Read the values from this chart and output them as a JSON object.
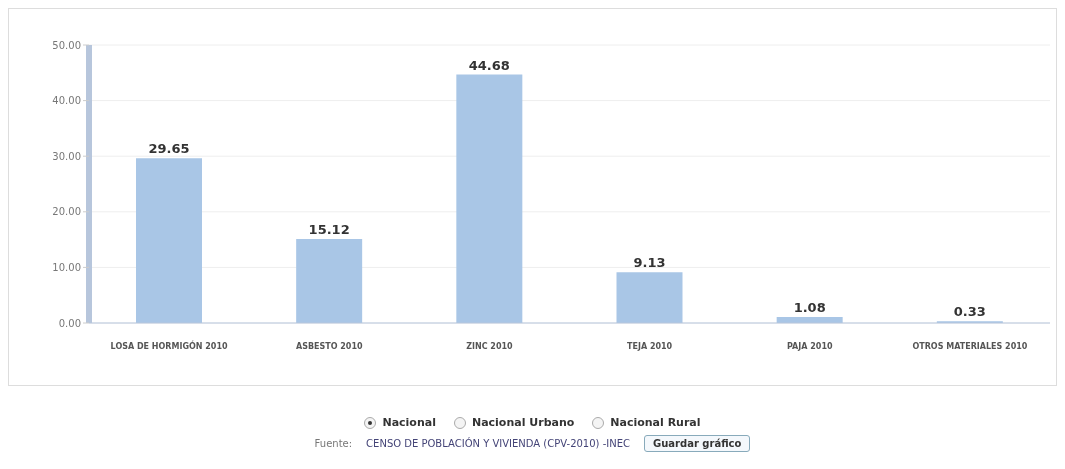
{
  "chart_data": {
    "type": "bar",
    "categories": [
      "LOSA DE HORMIGÓN 2010",
      "ASBESTO 2010",
      "ZINC 2010",
      "TEJA 2010",
      "PAJA 2010",
      "OTROS MATERIALES 2010"
    ],
    "values": [
      29.65,
      15.12,
      44.68,
      9.13,
      1.08,
      0.33
    ],
    "color": "#a9c6e6",
    "ylim": [
      0,
      50
    ],
    "yticks": [
      {
        "value": 0,
        "label": "0.00"
      },
      {
        "value": 10,
        "label": "10.00"
      },
      {
        "value": 20,
        "label": "20.00"
      },
      {
        "value": 30,
        "label": "30.00"
      },
      {
        "value": 40,
        "label": "40.00"
      },
      {
        "value": 50,
        "label": "50.00"
      }
    ],
    "grid": "y",
    "data_labels": true,
    "annotations": [
      "Nacional",
      "Nacional Urbano",
      "Nacional Rural",
      "Fuente:",
      "CENSO DE POBLACIÓN Y VIVIENDA (CPV-2010) -INEC",
      "Guardar gráfico"
    ]
  }
}
